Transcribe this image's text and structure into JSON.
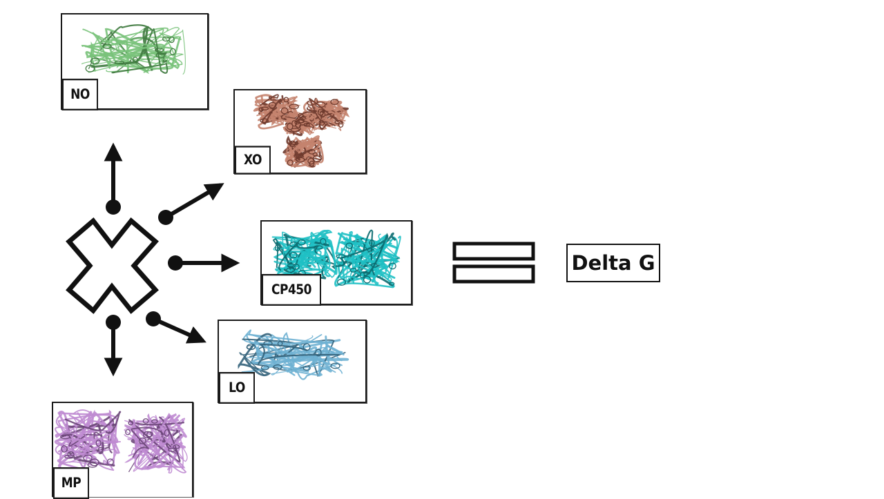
{
  "panels": {
    "no": {
      "label": "NO",
      "color": "#79c27a",
      "shade": "#3f7a3f"
    },
    "xo": {
      "label": "XO",
      "color": "#c4836e",
      "shade": "#6e3a2d"
    },
    "cp450": {
      "label": "CP450",
      "color": "#1fc0c4",
      "shade": "#0b6b70"
    },
    "lo": {
      "label": "LO",
      "color": "#6fb1d3",
      "shade": "#33627a"
    },
    "mp": {
      "label": "MP",
      "color": "#bf8bd1",
      "shade": "#6a4578"
    }
  },
  "result": {
    "label": "Delta G"
  },
  "colors": {
    "ink": "#111111"
  }
}
